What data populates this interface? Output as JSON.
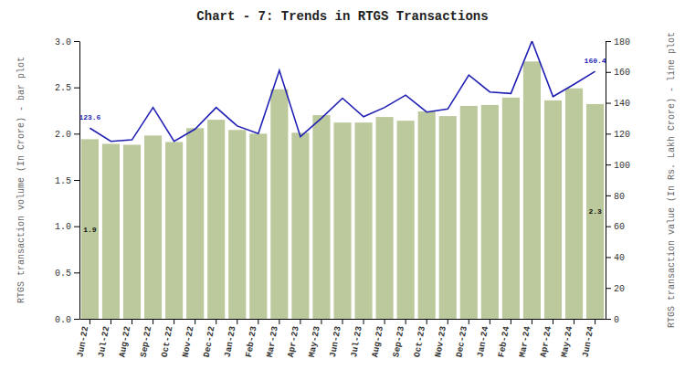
{
  "chart_data": {
    "type": "bar",
    "title": "Chart - 7: Trends in RTGS Transactions",
    "y_label": "RTGS transaction volume (In Crore) - bar plot",
    "y2_label": "RTGS transaction value (In Rs. Lakh Crore) - line plot",
    "categories": [
      "Jun-22",
      "Jul-22",
      "Aug-22",
      "Sep-22",
      "Oct-22",
      "Nov-22",
      "Dec-22",
      "Jan-23",
      "Feb-23",
      "Mar-23",
      "Apr-23",
      "May-23",
      "Jun-23",
      "Jul-23",
      "Aug-23",
      "Sep-23",
      "Oct-23",
      "Nov-23",
      "Dec-23",
      "Jan-24",
      "Feb-24",
      "Mar-24",
      "Apr-24",
      "May-24",
      "Jun-24"
    ],
    "series": [
      {
        "type": "bar",
        "color": "#bcc99c",
        "values": [
          1.94,
          1.89,
          1.88,
          1.98,
          1.91,
          2.06,
          2.15,
          2.04,
          2.0,
          2.48,
          2.01,
          2.2,
          2.12,
          2.12,
          2.18,
          2.14,
          2.24,
          2.19,
          2.3,
          2.31,
          2.39,
          2.78,
          2.36,
          2.49,
          2.32
        ]
      },
      {
        "type": "line",
        "color": "#1f1fb4",
        "axis": "y2",
        "values": [
          123.6,
          115,
          116,
          137,
          115,
          123,
          137,
          125,
          120,
          161,
          118,
          130,
          143,
          131,
          137,
          145,
          134,
          136,
          158,
          147,
          146,
          180,
          144,
          152,
          160.4
        ]
      }
    ],
    "annotations": [
      {
        "text": "1.9",
        "series": 0,
        "index": 0
      },
      {
        "text": "2.3",
        "series": 0,
        "index": 24
      },
      {
        "text": "123.6",
        "series": 1,
        "index": 0
      },
      {
        "text": "160.4",
        "series": 1,
        "index": 24
      }
    ],
    "ylim": [
      0,
      3.0
    ],
    "yticks": [
      {
        "value": 0,
        "label": "0.0"
      },
      0.5,
      {
        "value": 1,
        "label": "1.0"
      },
      1.5,
      {
        "value": 2,
        "label": "2.0"
      },
      2.5,
      {
        "value": 3,
        "label": "3.0"
      }
    ],
    "y2lim": [
      0,
      180
    ],
    "y2ticks": [
      0,
      20,
      40,
      60,
      80,
      100,
      120,
      140,
      160,
      180
    ],
    "grid": false
  }
}
